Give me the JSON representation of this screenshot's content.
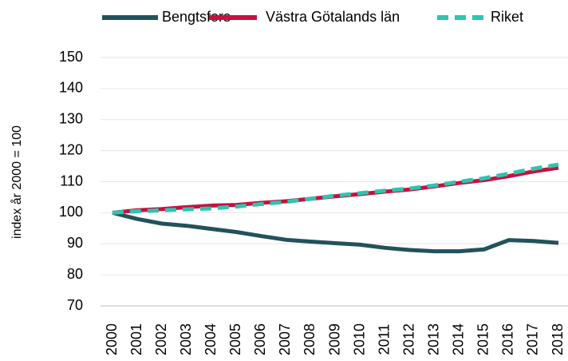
{
  "chart_data": {
    "type": "line",
    "y_label": "index år 2000 = 100",
    "categories": [
      "2000",
      "2001",
      "2002",
      "2003",
      "2004",
      "2005",
      "2006",
      "2007",
      "2008",
      "2009",
      "2010",
      "2011",
      "2012",
      "2013",
      "2014",
      "2015",
      "2016",
      "2017",
      "2018"
    ],
    "series": [
      {
        "name": "Bengtsfors",
        "color": "#23525b",
        "dash": "solid",
        "values": [
          100,
          98,
          96.5,
          95.8,
          94.8,
          93.8,
          92.5,
          91.3,
          90.7,
          90.2,
          89.7,
          88.7,
          88,
          87.6,
          87.6,
          88.2,
          91.2,
          90.9,
          90.3
        ]
      },
      {
        "name": "Västra Götalands län",
        "color": "#c8103e",
        "dash": "solid",
        "values": [
          100,
          100.8,
          101.2,
          101.8,
          102.3,
          102.5,
          103.2,
          103.7,
          104.5,
          105.3,
          106,
          106.8,
          107.5,
          108.5,
          109.6,
          110.5,
          111.8,
          113.3,
          114.5
        ]
      },
      {
        "name": "Riket",
        "color": "#2ec4b0",
        "dash": "dashed",
        "values": [
          100,
          100.5,
          100.8,
          101.1,
          101.4,
          102,
          102.8,
          103.5,
          104.5,
          105.5,
          106.3,
          107.1,
          107.8,
          108.8,
          110,
          111.1,
          112.6,
          114.2,
          115.5
        ]
      }
    ],
    "ylim": [
      70,
      150
    ],
    "yticks": [
      70,
      80,
      90,
      100,
      110,
      120,
      130,
      140,
      150
    ],
    "grid": true,
    "legend": "top"
  }
}
